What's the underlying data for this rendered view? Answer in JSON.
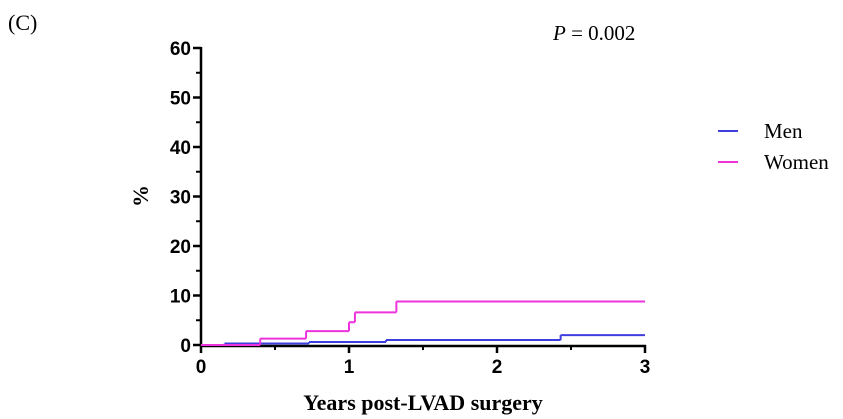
{
  "panel_label": "(C)",
  "chart_data": {
    "type": "step",
    "annotation": {
      "italic": "P",
      "text": " = 0.002"
    },
    "x_label": "Years post-LVAD surgery",
    "y_label": "%",
    "xlim": [
      0,
      3
    ],
    "xticks": [
      0,
      1,
      2,
      3
    ],
    "ylim": [
      0,
      60
    ],
    "yticks": [
      0,
      10,
      20,
      30,
      40,
      50,
      60
    ],
    "series": [
      {
        "name": "Men",
        "color": "#3f3fe0",
        "x": [
          0,
          0.16,
          0.73,
          1.25,
          2.43
        ],
        "values": [
          0,
          0.3,
          0.6,
          1.0,
          2.0
        ]
      },
      {
        "name": "Women",
        "color": "#ee33dd",
        "x": [
          0,
          0.4,
          0.71,
          1.0,
          1.04,
          1.32
        ],
        "values": [
          0,
          1.3,
          2.8,
          4.6,
          6.6,
          8.8
        ]
      }
    ]
  }
}
